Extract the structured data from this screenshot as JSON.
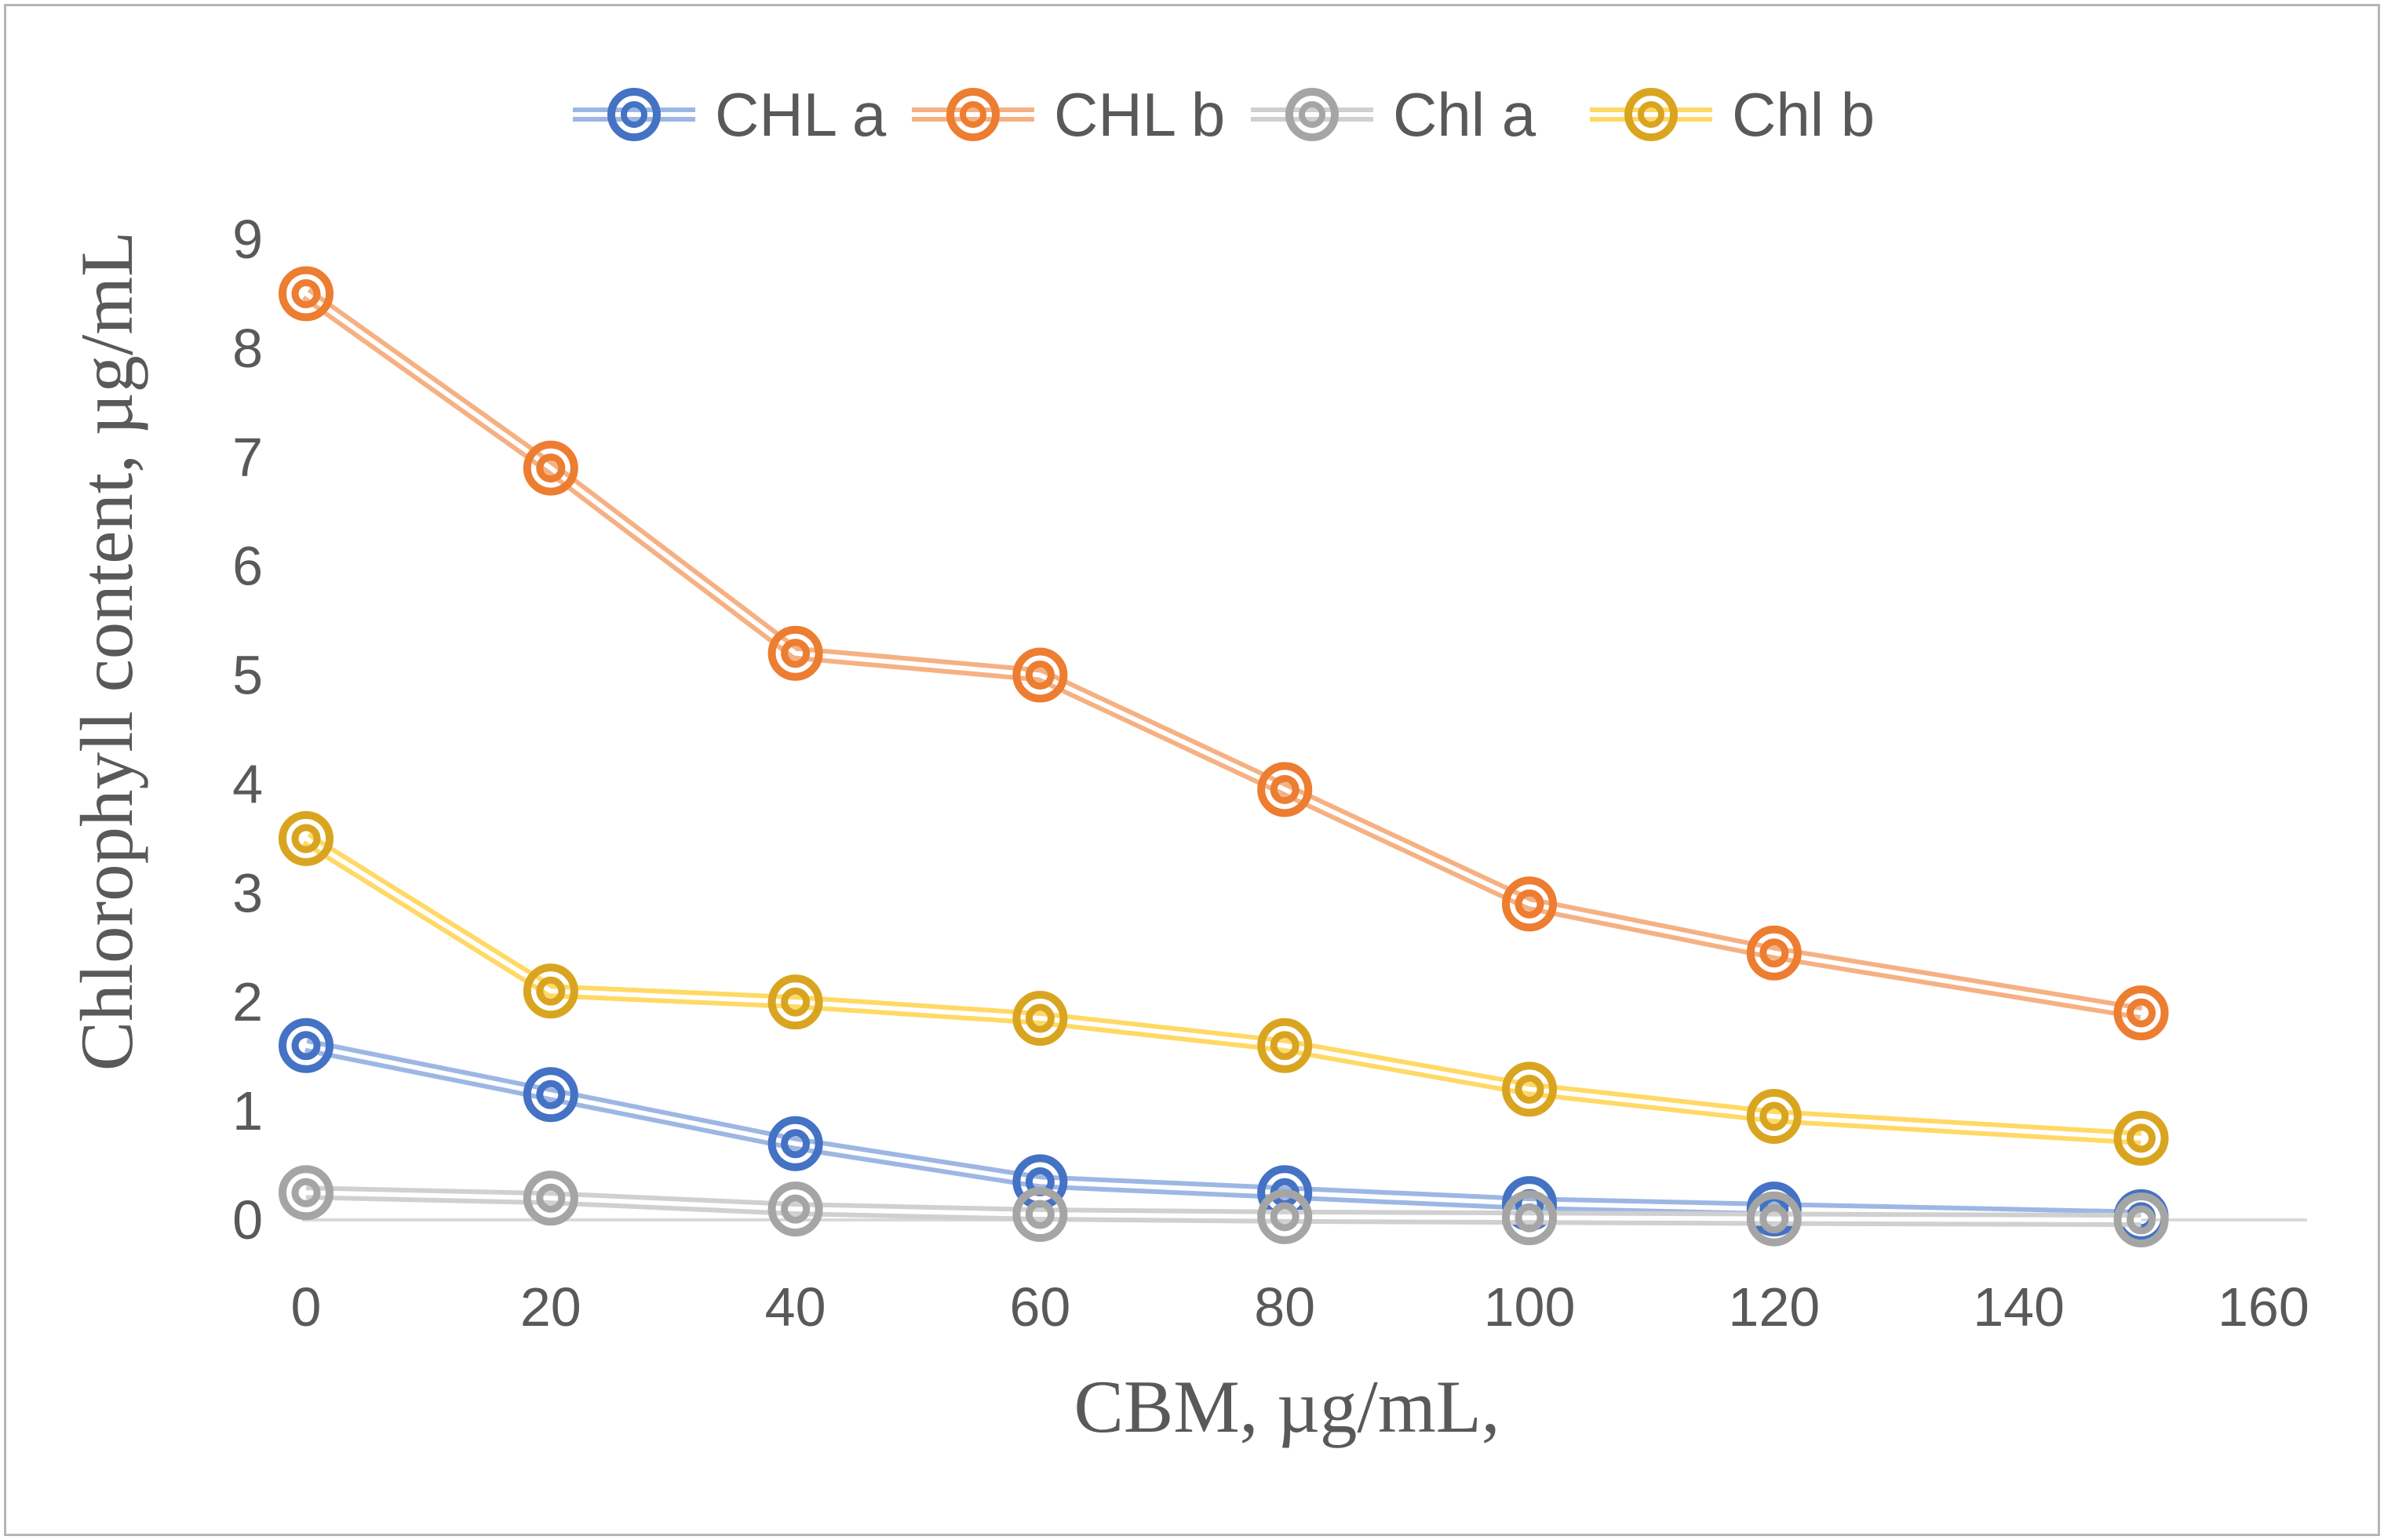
{
  "frame": {
    "background": "#ffffff",
    "border_color": "#b5b5b5"
  },
  "chart_data": {
    "type": "line",
    "title": "",
    "xlabel": "CBM, µg/mL,",
    "ylabel": "Chlorophyll content, µg/mL",
    "x": [
      0,
      20,
      40,
      60,
      80,
      100,
      120,
      150
    ],
    "series": [
      {
        "name": "CHL a",
        "marker_color": "#4472C4",
        "line_color": "#9DB7E4",
        "values": [
          1.6,
          1.15,
          0.7,
          0.35,
          0.25,
          0.15,
          0.1,
          0.03
        ]
      },
      {
        "name": "CHL b",
        "marker_color": "#ED7D31",
        "line_color": "#F5B183",
        "values": [
          8.5,
          6.9,
          5.2,
          5.0,
          3.95,
          2.9,
          2.45,
          1.9
        ]
      },
      {
        "name": "Chl a",
        "marker_color": "#A5A5A5",
        "line_color": "#D0D0D0",
        "values": [
          0.25,
          0.2,
          0.1,
          0.05,
          0.03,
          0.02,
          0.01,
          0.0
        ]
      },
      {
        "name": "Chl b",
        "marker_color": "#D9A521",
        "line_color": "#FFD966",
        "values": [
          3.5,
          2.1,
          2.0,
          1.85,
          1.6,
          1.2,
          0.95,
          0.75
        ]
      }
    ],
    "x_ticks": [
      0,
      20,
      40,
      60,
      80,
      100,
      120,
      140,
      160
    ],
    "y_ticks": [
      0,
      1,
      2,
      3,
      4,
      5,
      6,
      7,
      8,
      9
    ],
    "xlim": [
      0,
      160
    ],
    "ylim": [
      0,
      9
    ],
    "grid": false,
    "legend_position": "top-center",
    "axis_line_color": "#D9D9D9",
    "text_color": "#595959",
    "marker_style": "concentric-circles",
    "line_style": "double"
  }
}
